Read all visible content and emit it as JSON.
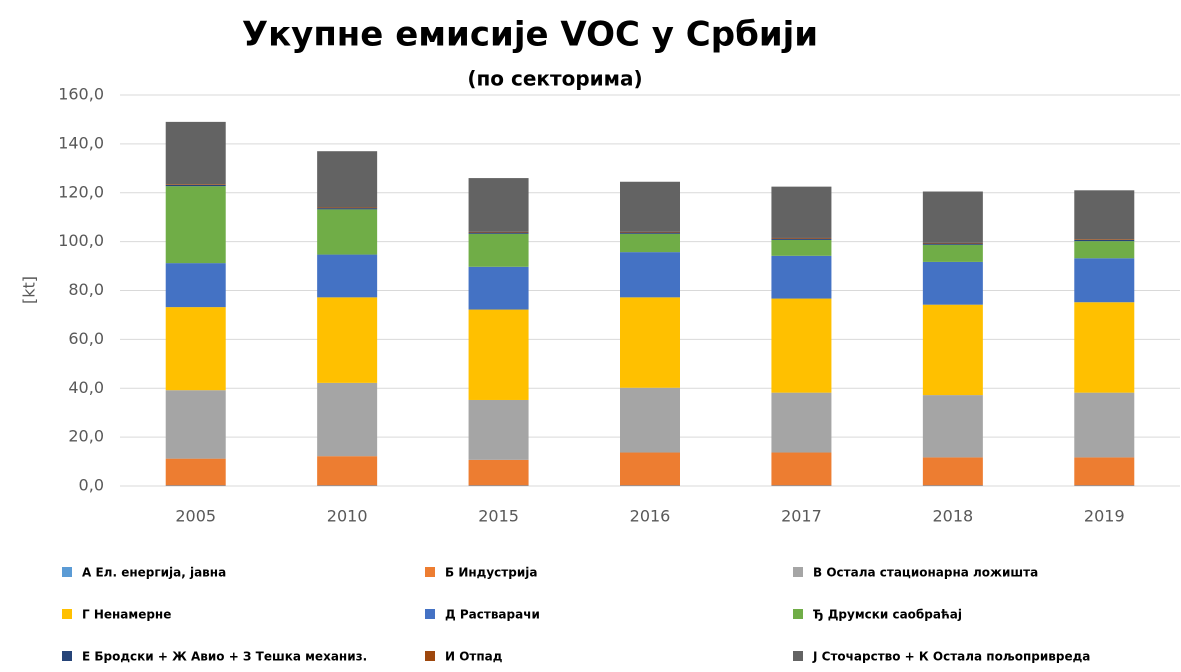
{
  "chart_data": {
    "type": "stacked_bar",
    "title": "Укупне емисије VOC у Србији",
    "subtitle": "(по секторима)",
    "ylabel": "[kt]",
    "categories": [
      "2005",
      "2010",
      "2015",
      "2016",
      "2017",
      "2018",
      "2019"
    ],
    "series": [
      {
        "name": "А Ел. енергија, јавна",
        "color": "#5b9bd5",
        "values": [
          0.2,
          0.2,
          0.2,
          0.2,
          0.2,
          0.2,
          0.2
        ]
      },
      {
        "name": "Б Индустрија",
        "color": "#ed7d31",
        "values": [
          11,
          12,
          10.5,
          13.5,
          13.5,
          11.5,
          11.5
        ]
      },
      {
        "name": "В Остала стационарна ложишта",
        "color": "#a5a5a5",
        "values": [
          28,
          30,
          24.5,
          26.5,
          24.5,
          25.5,
          26.5
        ]
      },
      {
        "name": "Г Ненамерне",
        "color": "#ffc000",
        "values": [
          34,
          35,
          37,
          37,
          38.5,
          37,
          37
        ]
      },
      {
        "name": "Д Растварачи",
        "color": "#4472c4",
        "values": [
          18,
          17.5,
          17.5,
          18.5,
          17.5,
          17.5,
          18
        ]
      },
      {
        "name": "Ђ Друмски саобраћај",
        "color": "#70ad47",
        "values": [
          31.5,
          18.5,
          13.5,
          7.5,
          6.5,
          7,
          7
        ]
      },
      {
        "name": "Е Бродски + Ж Авио + З Тешка механиз.",
        "color": "#264478",
        "values": [
          0.5,
          0.5,
          0.5,
          0.5,
          0.5,
          0.5,
          0.5
        ]
      },
      {
        "name": "И Отпад",
        "color": "#9e480e",
        "values": [
          0.3,
          0.3,
          0.3,
          0.3,
          0.3,
          0.3,
          0.3
        ]
      },
      {
        "name": "Ј Сточарство + К Остала пољопривреда",
        "color": "#636363",
        "values": [
          25.5,
          23,
          22,
          20.5,
          21,
          21,
          20
        ]
      }
    ],
    "ylim": [
      0,
      160
    ],
    "yticks": [
      {
        "value": 0,
        "label": "0,0"
      },
      {
        "value": 20,
        "label": "20,0"
      },
      {
        "value": 40,
        "label": "40,0"
      },
      {
        "value": 60,
        "label": "60,0"
      },
      {
        "value": 80,
        "label": "80,0"
      },
      {
        "value": 100,
        "label": "100,0"
      },
      {
        "value": 120,
        "label": "120,0"
      },
      {
        "value": 140,
        "label": "140,0"
      },
      {
        "value": 160,
        "label": "160,0"
      }
    ],
    "grid": true
  }
}
